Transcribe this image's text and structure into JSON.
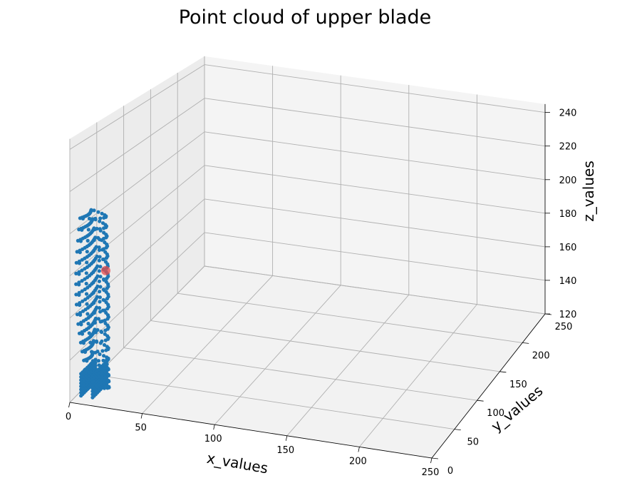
{
  "chart_data": {
    "type": "scatter",
    "projection": "3d",
    "title": "Point cloud of upper blade",
    "xlabel": "x_values",
    "ylabel": "y_values",
    "zlabel": "z_values",
    "xlim": [
      0,
      250
    ],
    "ylim": [
      0,
      250
    ],
    "zlim": [
      120,
      245
    ],
    "x_ticks": [
      "0",
      "50",
      "100",
      "150",
      "200",
      "250"
    ],
    "y_ticks": [
      "0",
      "50",
      "100",
      "150",
      "200",
      "250"
    ],
    "z_ticks": [
      "120",
      "140",
      "160",
      "180",
      "200",
      "220",
      "240"
    ],
    "grid": true,
    "colors": {
      "points": "#1f77b4",
      "highlight": "#e8494a",
      "pane": "#f2f2f2",
      "grid": "#b0b0b0"
    },
    "highlight_point": {
      "x": 10,
      "y": 40,
      "z": 175
    },
    "blade_profile": {
      "x_span": [
        2,
        16
      ],
      "y_span": [
        8,
        48
      ],
      "z_levels": [
        205,
        200,
        195,
        190,
        185,
        180,
        175,
        170,
        165,
        160,
        155,
        150,
        145,
        140,
        135,
        130,
        127,
        124,
        121
      ]
    },
    "series": []
  }
}
